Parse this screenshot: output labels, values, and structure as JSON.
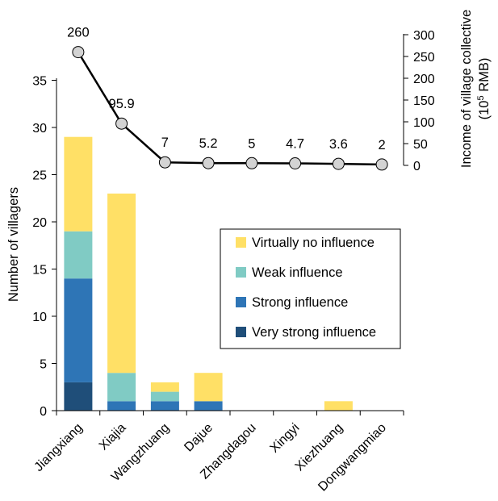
{
  "chart_data": {
    "type": "bar",
    "categories": [
      "Jiangxiang",
      "Xiajia",
      "Wangzhuang",
      "Dajue",
      "Zhangdagou",
      "Xingyi",
      "Xiezhuang",
      "Dongwangmiao"
    ],
    "series": [
      {
        "name": "Very strong influence",
        "color": "#1f4e79",
        "values": [
          3,
          0,
          0,
          0,
          0,
          0,
          0,
          0
        ]
      },
      {
        "name": "Strong influence",
        "color": "#2e75b6",
        "values": [
          11,
          1,
          1,
          1,
          0,
          0,
          0,
          0
        ]
      },
      {
        "name": "Weak influence",
        "color": "#80cbc4",
        "values": [
          5,
          3,
          1,
          0,
          0,
          0,
          0,
          0
        ]
      },
      {
        "name": "Virtually no influence",
        "color": "#ffe066",
        "values": [
          10,
          19,
          1,
          3,
          0,
          0,
          1,
          0
        ]
      }
    ],
    "line_series": {
      "values": [
        260,
        95.9,
        7,
        5.2,
        5,
        4.7,
        3.6,
        2
      ],
      "labels": [
        "260",
        "95.9",
        "7",
        "5.2",
        "5",
        "4.7",
        "3.6",
        "2"
      ],
      "marker_color": "#d3d3d3"
    },
    "y_left": {
      "label": "Number of villagers",
      "ylim": [
        0,
        38
      ],
      "ticks": [
        0,
        5,
        10,
        15,
        20,
        25,
        30,
        35
      ]
    },
    "y_right": {
      "label_line1": "Income of village collective",
      "label_line2_prefix": "(10",
      "label_line2_sup": "5",
      "label_line2_suffix": " RMB)",
      "ylim": [
        0,
        300
      ],
      "ticks": [
        0,
        50,
        100,
        150,
        200,
        250,
        300
      ]
    },
    "legend": {
      "placement": "center-right",
      "order": [
        "Virtually no influence",
        "Weak influence",
        "Strong influence",
        "Very strong influence"
      ]
    },
    "grid": false
  }
}
